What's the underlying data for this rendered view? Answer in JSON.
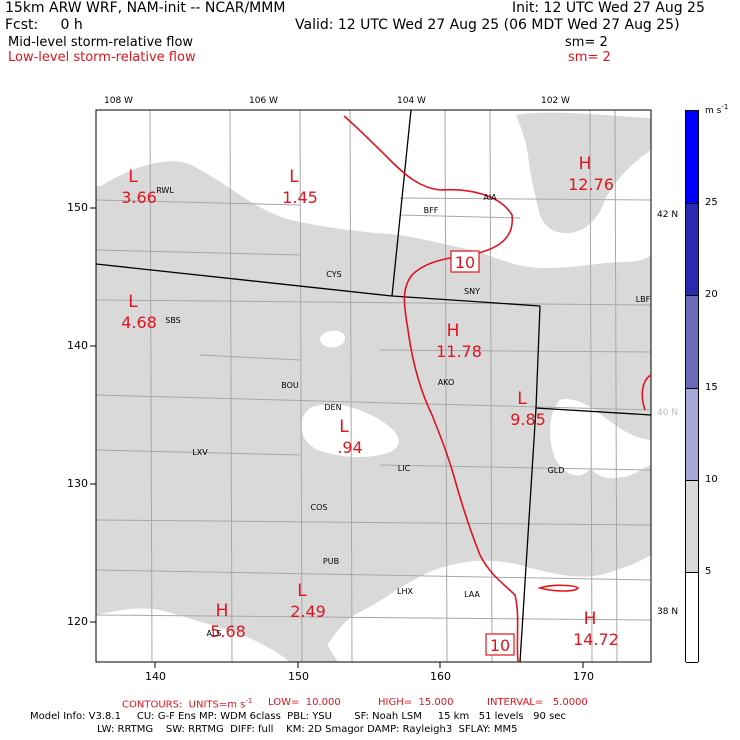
{
  "header": {
    "model": "15km ARW WRF, NAM-init -- NCAR/MMM",
    "init": "Init: 12 UTC Wed 27 Aug 25",
    "fcst": "Fcst:     0 h",
    "valid": "Valid: 12 UTC Wed 27 Aug 25 (06 MDT Wed 27 Aug 25)",
    "field1": "Mid-level storm-relative flow",
    "field1_sm": "sm= 2",
    "field2": "Low-level storm-relative flow",
    "field2_sm": "sm= 2"
  },
  "colors": {
    "contour": "#e0141e",
    "shade_light": "#d9d9d9",
    "border": "#000000"
  },
  "axes": {
    "top_lon": [
      "108 W",
      "106 W",
      "104 W",
      "102 W"
    ],
    "left_y": [
      "150",
      "140",
      "130",
      "120"
    ],
    "bottom_x": [
      "140",
      "150",
      "160",
      "170"
    ],
    "right_lat": [
      "42 N",
      "40 N",
      "38 N"
    ]
  },
  "cities": [
    "RWL",
    "BFF",
    "AIA",
    "CYS",
    "SNY",
    "LBF",
    "SBS",
    "BOU",
    "AKO",
    "DEN",
    "LXV",
    "LIC",
    "GLD",
    "COS",
    "PUB",
    "LHX",
    "LAA",
    "ALS"
  ],
  "extrema": [
    {
      "kind": "L",
      "value": "3.66"
    },
    {
      "kind": "L",
      "value": "1.45"
    },
    {
      "kind": "H",
      "value": "12.76"
    },
    {
      "kind": "L",
      "value": "4.68"
    },
    {
      "kind": "H",
      "value": "11.78"
    },
    {
      "kind": "L",
      "value": "9.85"
    },
    {
      "kind": "L",
      "value": ".94"
    },
    {
      "kind": "L",
      "value": "2.49"
    },
    {
      "kind": "H",
      "value": "5.68"
    },
    {
      "kind": "H",
      "value": "14.72"
    }
  ],
  "contour_labels": [
    "10",
    "10"
  ],
  "colorbar": {
    "unit": "m s",
    "unit_exp": "-1",
    "levels": [
      "25",
      "20",
      "15",
      "10",
      "5"
    ],
    "colors": [
      "#0000ff",
      "#2a2ab0",
      "#6a6ab8",
      "#a8a8d8",
      "#d9d9d9",
      "#ffffff"
    ]
  },
  "footer": {
    "contours": "CONTOURS:  UNITS=m s",
    "contours_exp": "-1",
    "low": "LOW=  10.000",
    "high": "HIGH=  15.000",
    "interval": "INTERVAL=   5.0000",
    "info1": "Model Info: V3.8.1     CU: G-F Ens MP: WDM 6class  PBL: YSU       SF: Noah LSM     15 km   51 levels   90 sec",
    "info2": "LW: RRTMG    SW: RRTMG  DIFF: full    KM: 2D Smagor DAMP: Rayleigh3  SFLAY: MM5"
  }
}
